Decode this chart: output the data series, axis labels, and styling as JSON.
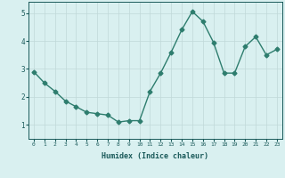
{
  "x": [
    0,
    1,
    2,
    3,
    4,
    5,
    6,
    7,
    8,
    9,
    10,
    11,
    12,
    13,
    14,
    15,
    16,
    17,
    18,
    19,
    20,
    21,
    22,
    23
  ],
  "y": [
    2.9,
    2.5,
    2.2,
    1.85,
    1.65,
    1.45,
    1.4,
    1.35,
    1.1,
    1.15,
    1.15,
    2.2,
    2.85,
    3.6,
    4.4,
    5.05,
    4.7,
    3.95,
    2.85,
    2.85,
    3.8,
    4.15,
    3.5,
    3.7
  ],
  "line_color": "#2e7d6e",
  "marker": "D",
  "markersize": 2.5,
  "linewidth": 1.0,
  "bg_color": "#d9f0f0",
  "grid_color": "#c0d8d8",
  "xlabel": "Humidex (Indice chaleur)",
  "xlabel_color": "#1a5a5a",
  "tick_color": "#1a5a5a",
  "ylim": [
    0.5,
    5.4
  ],
  "yticks": [
    1,
    2,
    3,
    4,
    5
  ],
  "xticks": [
    0,
    1,
    2,
    3,
    4,
    5,
    6,
    7,
    8,
    9,
    10,
    11,
    12,
    13,
    14,
    15,
    16,
    17,
    18,
    19,
    20,
    21,
    22,
    23
  ],
  "fig_bg_color": "#d9f0f0"
}
